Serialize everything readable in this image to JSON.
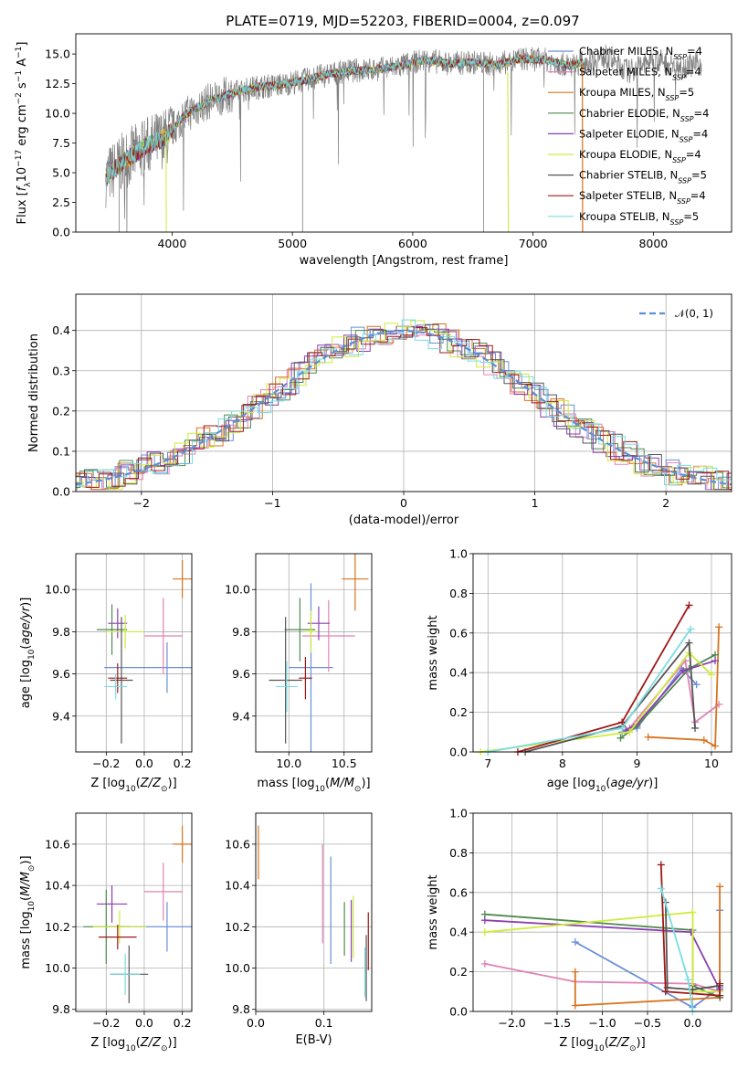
{
  "title": "PLATE=0719, MJD=52203, FIBERID=0004, z=0.097",
  "colors": {
    "Chabrier MILES": "#6a8fd8",
    "Salpeter MILES": "#e082b6",
    "Kroupa MILES": "#d9731f",
    "Chabrier ELODIE": "#4f8a4f",
    "Salpeter ELODIE": "#8a3fb0",
    "Kroupa ELODIE": "#d0ea3a",
    "Chabrier STELIB": "#555555",
    "Salpeter STELIB": "#a01818",
    "Kroupa STELIB": "#79dde0"
  },
  "legend": {
    "spectrum": [
      {
        "name": "Chabrier MILES",
        "n": "4"
      },
      {
        "name": "Salpeter MILES",
        "n": "4"
      },
      {
        "name": "Kroupa MILES",
        "n": "5"
      },
      {
        "name": "Chabrier ELODIE",
        "n": "4"
      },
      {
        "name": "Salpeter ELODIE",
        "n": "4"
      },
      {
        "name": "Kroupa ELODIE",
        "n": "4"
      },
      {
        "name": "Chabrier STELIB",
        "n": "5"
      },
      {
        "name": "Salpeter STELIB",
        "n": "4"
      },
      {
        "name": "Kroupa STELIB",
        "n": "5"
      }
    ],
    "normal": "𝒩(0, 1)"
  },
  "chart_data": [
    {
      "id": "spectrum",
      "type": "line",
      "xlabel": "wavelength [Angstrom, rest frame]",
      "ylabel": "Flux [f_λ 10^-17 erg cm^-2 s^-1 A^-1]",
      "xlim": [
        3200,
        8650
      ],
      "ylim": [
        0,
        16.7
      ],
      "xticks": [
        "4000",
        "5000",
        "6000",
        "7000",
        "8000"
      ],
      "yticks": [
        "0.0",
        "2.5",
        "5.0",
        "7.5",
        "10.0",
        "12.5",
        "15.0"
      ],
      "data_continuum_x": [
        3450,
        3600,
        3800,
        3950,
        4100,
        4300,
        4500,
        4700,
        4900,
        5100,
        5300,
        5500,
        5700,
        5900,
        6100,
        6300,
        6500,
        6700,
        6900,
        7100,
        7300,
        7420
      ],
      "data_continuum_y": [
        4.6,
        6.0,
        7.3,
        8.0,
        9.8,
        11.0,
        11.7,
        12.2,
        12.4,
        12.8,
        13.3,
        13.6,
        13.7,
        14.0,
        14.5,
        14.2,
        14.3,
        14.1,
        14.6,
        14.5,
        14.0,
        14.3
      ],
      "data_extension_x": [
        7420,
        7600,
        7800,
        8000,
        8200,
        8400
      ],
      "data_extension_y": [
        14.3,
        14.8,
        13.5,
        14.6,
        13.9,
        14.2
      ],
      "grid": false
    },
    {
      "id": "residuals",
      "type": "line",
      "xlabel": "(data-model)/error",
      "ylabel": "Normed distribution",
      "xlim": [
        -2.5,
        2.5
      ],
      "ylim": [
        0,
        0.49
      ],
      "xticks": [
        "−2",
        "−1",
        "0",
        "1",
        "2"
      ],
      "yticks": [
        "0.0",
        "0.1",
        "0.2",
        "0.3",
        "0.4"
      ],
      "grid": true,
      "legend_position": "top-right"
    },
    {
      "id": "age_vs_Z",
      "type": "scatter",
      "xlabel": "Z [log10(Z/Z⊙)]",
      "ylabel": "age  [log10(age/yr)]",
      "xlim": [
        -0.36,
        0.25
      ],
      "ylim": [
        9.23,
        10.17
      ],
      "xticks": [
        "−0.2",
        "0.0",
        "0.2"
      ],
      "yticks": [
        "9.4",
        "9.6",
        "9.8",
        "10.0"
      ],
      "points": [
        {
          "model": "Chabrier MILES",
          "x": 0.12,
          "xerr": 0.33,
          "y": 9.63,
          "yerr": 0.12
        },
        {
          "model": "Salpeter MILES",
          "x": 0.1,
          "xerr": 0.1,
          "y": 9.78,
          "yerr": 0.18
        },
        {
          "model": "Kroupa MILES",
          "x": 0.2,
          "xerr": 0.05,
          "y": 10.05,
          "yerr": 0.09
        },
        {
          "model": "Chabrier ELODIE",
          "x": -0.17,
          "xerr": 0.08,
          "y": 9.81,
          "yerr": 0.12
        },
        {
          "model": "Salpeter ELODIE",
          "x": -0.14,
          "xerr": 0.05,
          "y": 9.84,
          "yerr": 0.07
        },
        {
          "model": "Kroupa ELODIE",
          "x": -0.1,
          "xerr": 0.1,
          "y": 9.8,
          "yerr": 0.08
        },
        {
          "model": "Chabrier STELIB",
          "x": -0.12,
          "xerr": 0.06,
          "y": 9.57,
          "yerr": 0.3
        },
        {
          "model": "Salpeter STELIB",
          "x": -0.14,
          "xerr": 0.05,
          "y": 9.58,
          "yerr": 0.07
        },
        {
          "model": "Kroupa STELIB",
          "x": -0.15,
          "xerr": 0.06,
          "y": 9.54,
          "yerr": 0.06
        }
      ],
      "grid": true
    },
    {
      "id": "age_vs_mass",
      "type": "scatter",
      "xlabel": "mass [log10(M/M⊙)]",
      "ylabel": "",
      "xlim": [
        9.7,
        10.75
      ],
      "ylim": [
        9.23,
        10.17
      ],
      "xticks": [
        "10.0",
        "10.5"
      ],
      "yticks": [
        "9.4",
        "9.6",
        "9.8",
        "10.0"
      ],
      "points": [
        {
          "model": "Chabrier MILES",
          "x": 10.2,
          "xerr": 0.2,
          "y": 9.63,
          "yerr": 0.4
        },
        {
          "model": "Salpeter MILES",
          "x": 10.36,
          "xerr": 0.24,
          "y": 9.78,
          "yerr": 0.17
        },
        {
          "model": "Kroupa MILES",
          "x": 10.6,
          "xerr": 0.12,
          "y": 10.05,
          "yerr": 0.15
        },
        {
          "model": "Chabrier ELODIE",
          "x": 10.1,
          "xerr": 0.14,
          "y": 9.81,
          "yerr": 0.15
        },
        {
          "model": "Salpeter ELODIE",
          "x": 10.27,
          "xerr": 0.1,
          "y": 9.84,
          "yerr": 0.08
        },
        {
          "model": "Kroupa ELODIE",
          "x": 10.2,
          "xerr": 0.06,
          "y": 9.8,
          "yerr": 0.1
        },
        {
          "model": "Chabrier STELIB",
          "x": 9.97,
          "xerr": 0.15,
          "y": 9.57,
          "yerr": 0.3
        },
        {
          "model": "Salpeter STELIB",
          "x": 10.15,
          "xerr": 0.06,
          "y": 9.58,
          "yerr": 0.1
        },
        {
          "model": "Kroupa STELIB",
          "x": 9.98,
          "xerr": 0.1,
          "y": 9.54,
          "yerr": 0.12
        }
      ],
      "grid": true
    },
    {
      "id": "mass_weight_vs_age",
      "type": "line",
      "xlabel": "age  [log10(age/yr)]",
      "ylabel": "mass weight",
      "xlim": [
        6.8,
        10.27
      ],
      "ylim": [
        0,
        1.0
      ],
      "xticks": [
        "7",
        "8",
        "9",
        "10"
      ],
      "yticks": [
        "0.0",
        "0.2",
        "0.4",
        "0.6",
        "0.8",
        "1.0"
      ],
      "series": [
        {
          "model": "Chabrier MILES",
          "x": [
            8.8,
            9.0,
            9.6,
            9.8
          ],
          "y": [
            0.1,
            0.12,
            0.42,
            0.34
          ]
        },
        {
          "model": "Salpeter MILES",
          "x": [
            8.9,
            9.65,
            9.78,
            10.1
          ],
          "y": [
            0.12,
            0.46,
            0.15,
            0.24
          ]
        },
        {
          "model": "Kroupa MILES",
          "x": [
            9.15,
            9.9,
            10.05,
            10.1
          ],
          "y": [
            0.075,
            0.06,
            0.03,
            0.63
          ]
        },
        {
          "model": "Chabrier ELODIE",
          "x": [
            8.78,
            9.0,
            9.7,
            10.05
          ],
          "y": [
            0.07,
            0.13,
            0.42,
            0.49
          ]
        },
        {
          "model": "Salpeter ELODIE",
          "x": [
            8.85,
            9.0,
            9.62,
            10.05
          ],
          "y": [
            0.11,
            0.14,
            0.41,
            0.46
          ]
        },
        {
          "model": "Kroupa ELODIE",
          "x": [
            6.9,
            8.9,
            9.7,
            10.0
          ],
          "y": [
            0.0,
            0.1,
            0.5,
            0.39
          ]
        },
        {
          "model": "Chabrier STELIB",
          "x": [
            7.5,
            8.8,
            9.7,
            9.78
          ],
          "y": [
            0.0,
            0.13,
            0.55,
            0.12
          ]
        },
        {
          "model": "Salpeter STELIB",
          "x": [
            7.4,
            8.8,
            9.7
          ],
          "y": [
            0.0,
            0.15,
            0.74
          ]
        },
        {
          "model": "Kroupa STELIB",
          "x": [
            7.0,
            8.8,
            9.72
          ],
          "y": [
            0.0,
            0.12,
            0.62
          ]
        }
      ],
      "grid": true
    },
    {
      "id": "mass_vs_Z",
      "type": "scatter",
      "xlabel": "Z [log10(Z/Z⊙)]",
      "ylabel": "mass [log10(M/M⊙)]",
      "xlim": [
        -0.36,
        0.25
      ],
      "ylim": [
        9.79,
        10.75
      ],
      "xticks": [
        "−0.2",
        "0.0",
        "0.2"
      ],
      "yticks": [
        "9.8",
        "10.0",
        "10.2",
        "10.4",
        "10.6"
      ],
      "points": [
        {
          "model": "Chabrier MILES",
          "x": 0.12,
          "xerr": 0.33,
          "y": 10.2,
          "yerr": 0.12
        },
        {
          "model": "Salpeter MILES",
          "x": 0.1,
          "xerr": 0.1,
          "y": 10.37,
          "yerr": 0.14
        },
        {
          "model": "Kroupa MILES",
          "x": 0.2,
          "xerr": 0.05,
          "y": 10.6,
          "yerr": 0.09
        },
        {
          "model": "Chabrier ELODIE",
          "x": -0.2,
          "xerr": 0.12,
          "y": 10.2,
          "yerr": 0.18
        },
        {
          "model": "Salpeter ELODIE",
          "x": -0.17,
          "xerr": 0.08,
          "y": 10.31,
          "yerr": 0.09
        },
        {
          "model": "Kroupa ELODIE",
          "x": -0.13,
          "xerr": 0.14,
          "y": 10.2,
          "yerr": 0.08
        },
        {
          "model": "Chabrier STELIB",
          "x": -0.08,
          "xerr": 0.1,
          "y": 9.97,
          "yerr": 0.14
        },
        {
          "model": "Salpeter STELIB",
          "x": -0.14,
          "xerr": 0.1,
          "y": 10.15,
          "yerr": 0.06
        },
        {
          "model": "Kroupa STELIB",
          "x": -0.1,
          "xerr": 0.08,
          "y": 9.97,
          "yerr": 0.1
        }
      ],
      "grid": true
    },
    {
      "id": "mass_vs_EBV",
      "type": "scatter",
      "xlabel": "E(B-V)",
      "ylabel": "",
      "xlim": [
        0.0,
        0.17
      ],
      "ylim": [
        9.79,
        10.75
      ],
      "xticks": [
        "0.0",
        "0.1"
      ],
      "yticks": [
        "9.8",
        "10.0",
        "10.2",
        "10.4",
        "10.6"
      ],
      "points": [
        {
          "model": "Chabrier MILES",
          "x": 0.11,
          "y": 10.28,
          "yerr": 0.26
        },
        {
          "model": "Salpeter MILES",
          "x": 0.098,
          "y": 10.36,
          "yerr": 0.24
        },
        {
          "model": "Kroupa MILES",
          "x": 0.004,
          "y": 10.56,
          "yerr": 0.13
        },
        {
          "model": "Chabrier ELODIE",
          "x": 0.13,
          "y": 10.19,
          "yerr": 0.13
        },
        {
          "model": "Salpeter ELODIE",
          "x": 0.14,
          "y": 10.18,
          "yerr": 0.15
        },
        {
          "model": "Kroupa ELODIE",
          "x": 0.143,
          "y": 10.2,
          "yerr": 0.15
        },
        {
          "model": "Chabrier STELIB",
          "x": 0.162,
          "y": 10.0,
          "yerr": 0.16
        },
        {
          "model": "Salpeter STELIB",
          "x": 0.165,
          "y": 10.13,
          "yerr": 0.14
        },
        {
          "model": "Kroupa STELIB",
          "x": 0.16,
          "y": 9.98,
          "yerr": 0.12
        }
      ],
      "grid": true
    },
    {
      "id": "mass_weight_vs_Z",
      "type": "line",
      "xlabel": "Z [log10(Z/Z⊙)]",
      "ylabel": "mass weight",
      "xlim": [
        -2.43,
        0.43
      ],
      "ylim": [
        0,
        1.0
      ],
      "xticks": [
        "−2.0",
        "−1.5",
        "−1.0",
        "−0.5",
        "0.0"
      ],
      "yticks": [
        "0.0",
        "0.2",
        "0.4",
        "0.6",
        "0.8",
        "1.0"
      ],
      "series": [
        {
          "model": "Chabrier MILES",
          "x": [
            -1.3,
            0.0,
            0.3,
            0.3
          ],
          "y": [
            0.35,
            0.02,
            0.12,
            0.51
          ]
        },
        {
          "model": "Salpeter MILES",
          "x": [
            -2.3,
            -1.3,
            0.0,
            0.3
          ],
          "y": [
            0.24,
            0.15,
            0.14,
            0.1
          ]
        },
        {
          "model": "Kroupa MILES",
          "x": [
            -1.3,
            -1.3,
            0.3,
            0.3
          ],
          "y": [
            0.2,
            0.03,
            0.07,
            0.63
          ]
        },
        {
          "model": "Chabrier ELODIE",
          "x": [
            -2.3,
            0.0,
            0.0,
            0.3
          ],
          "y": [
            0.49,
            0.41,
            0.13,
            0.07
          ]
        },
        {
          "model": "Salpeter ELODIE",
          "x": [
            -2.3,
            -0.02,
            0.3
          ],
          "y": [
            0.46,
            0.4,
            0.11
          ]
        },
        {
          "model": "Kroupa ELODIE",
          "x": [
            -2.3,
            0.0,
            0.0,
            0.3
          ],
          "y": [
            0.4,
            0.5,
            0.1,
            0.1
          ]
        },
        {
          "model": "Chabrier STELIB",
          "x": [
            -0.3,
            -0.28,
            0.0,
            0.3
          ],
          "y": [
            0.55,
            0.12,
            0.11,
            0.13
          ]
        },
        {
          "model": "Salpeter STELIB",
          "x": [
            -0.35,
            -0.3,
            0.3,
            0.3
          ],
          "y": [
            0.74,
            0.1,
            0.08,
            0.14
          ]
        },
        {
          "model": "Kroupa STELIB",
          "x": [
            -0.35,
            -0.05,
            0.0
          ],
          "y": [
            0.62,
            0.16,
            0.0
          ]
        }
      ],
      "grid": true
    }
  ]
}
